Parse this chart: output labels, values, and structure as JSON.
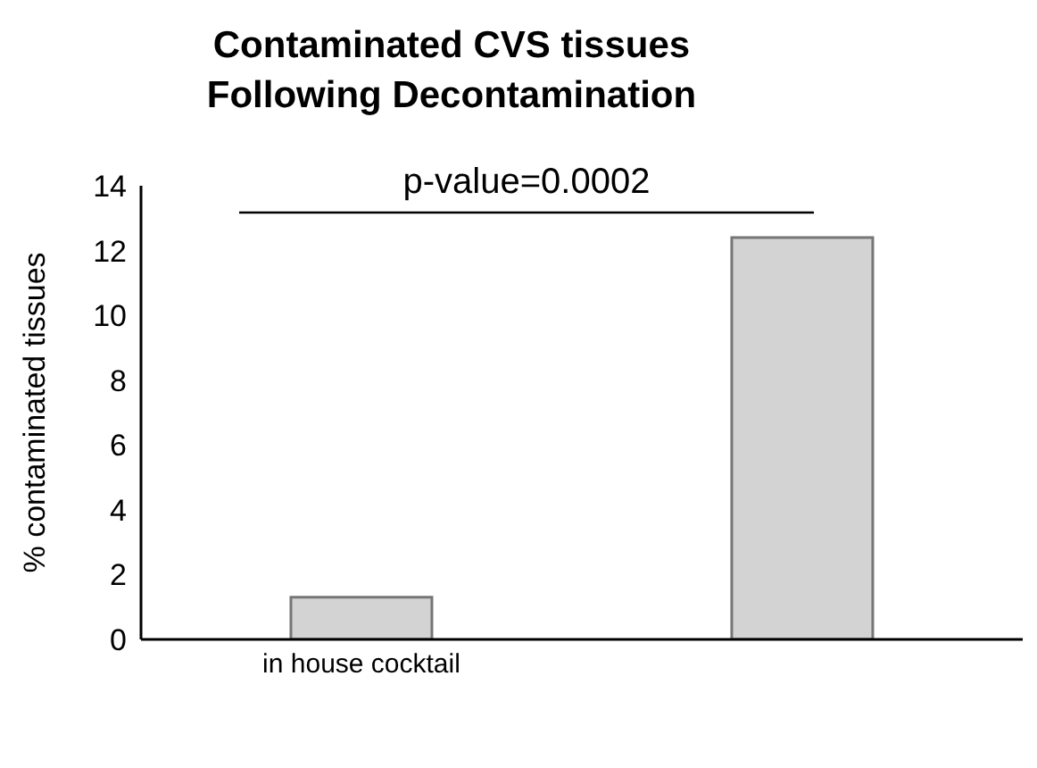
{
  "chart_data": {
    "type": "bar",
    "title": "Contaminated CVS tissues Following Decontamination",
    "ylabel": "% contaminated tissues",
    "categories": [
      "in house cocktail",
      null
    ],
    "values": [
      1.3,
      12.4
    ],
    "color": "#d3d3d3",
    "ylim": [
      0,
      14
    ],
    "yticks": [
      0,
      2,
      4,
      6,
      8,
      10,
      12,
      14
    ],
    "annotations": [
      "p-value=0.0002"
    ]
  }
}
